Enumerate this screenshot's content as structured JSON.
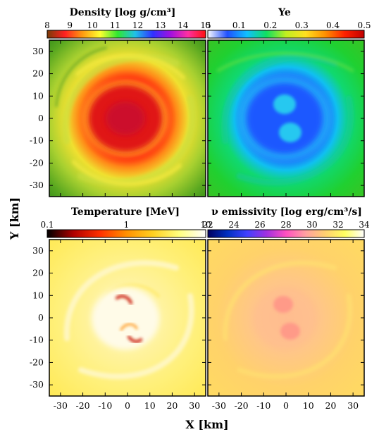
{
  "panels": [
    {
      "title": "Density [log g/cm³]",
      "colormap": [
        "#7a3b08",
        "#ff2020",
        "#ff9a10",
        "#ffff30",
        "#30e830",
        "#20c0e8",
        "#3030ff",
        "#a010e0",
        "#ff30a0",
        "#ff1010"
      ],
      "colorbar_ticks": [
        "8",
        "9",
        "10",
        "11",
        "12",
        "13",
        "14",
        "15"
      ]
    },
    {
      "title": "Ye",
      "colormap": [
        "#f8f8ff",
        "#2050ff",
        "#10c0ff",
        "#10e060",
        "#c0ee20",
        "#ffe020",
        "#ff9000",
        "#ff2000",
        "#c00000"
      ],
      "colorbar_ticks": [
        "0",
        "0.1",
        "0.2",
        "0.3",
        "0.4",
        "0.5"
      ]
    },
    {
      "title": "Temperature [MeV]",
      "colormap": [
        "#000000",
        "#b00000",
        "#ff3000",
        "#ff9000",
        "#ffd020",
        "#ffff80",
        "#ffffff"
      ],
      "colorbar_ticks": [
        "0.1",
        "1",
        "10"
      ]
    },
    {
      "title": "ν emissivity [log erg/cm³/s]",
      "colormap": [
        "#000060",
        "#0030c0",
        "#4040ff",
        "#a030e0",
        "#ff50c0",
        "#ffa0a0",
        "#ffd070",
        "#ffff60",
        "#ffffff"
      ],
      "colorbar_ticks": [
        "22",
        "24",
        "26",
        "28",
        "30",
        "32",
        "34"
      ]
    }
  ],
  "x_axis": {
    "label": "X [km]",
    "ticks": [
      "-30",
      "-20",
      "-10",
      "0",
      "10",
      "20",
      "30"
    ]
  },
  "y_axis": {
    "label": "Y [km]",
    "ticks": [
      "30",
      "20",
      "10",
      "0",
      "-10",
      "-20",
      "-30"
    ]
  }
}
